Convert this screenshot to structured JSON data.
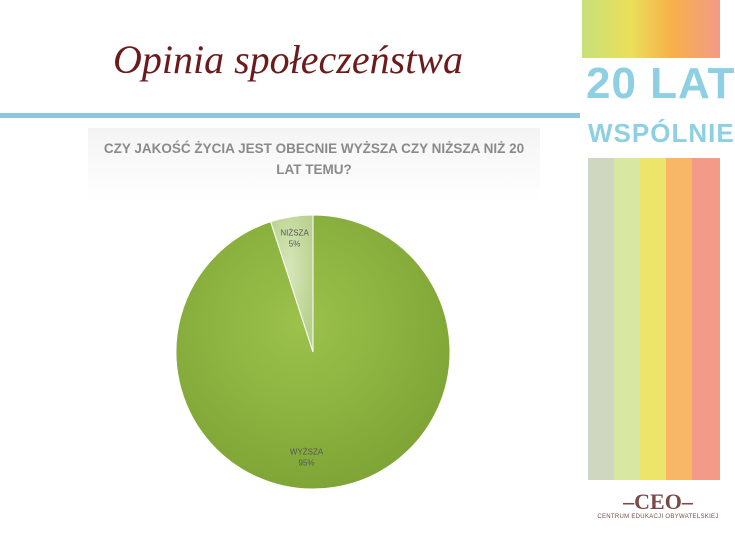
{
  "slide": {
    "title": "Opinia społeczeństwa"
  },
  "brand": {
    "line1": "20 LAT",
    "line2": "WSPÓLNIE"
  },
  "ceo": {
    "mark": "–CEO–",
    "text": "CENTRUM EDUKACJI OBYWATELSKIEJ"
  },
  "colors": {
    "title": "#6b1b1b",
    "rule": "#8fc6df",
    "slice_major": "#8db43e",
    "slice_minor": "#c7dba4",
    "stripes": [
      "#cfd7c0",
      "#d8e8a3",
      "#ece46b",
      "#f7b766",
      "#f39a88"
    ]
  },
  "chart_data": {
    "type": "pie",
    "title": "CZY JAKOŚĆ ŻYCIA JEST OBECNIE WYŻSZA CZY NIŻSZA NIŻ 20 LAT TEMU?",
    "slices": [
      {
        "label": "WYŻSZA",
        "value": 95,
        "display": "95%"
      },
      {
        "label": "NIŻSZA",
        "value": 5,
        "display": "5%"
      }
    ]
  }
}
